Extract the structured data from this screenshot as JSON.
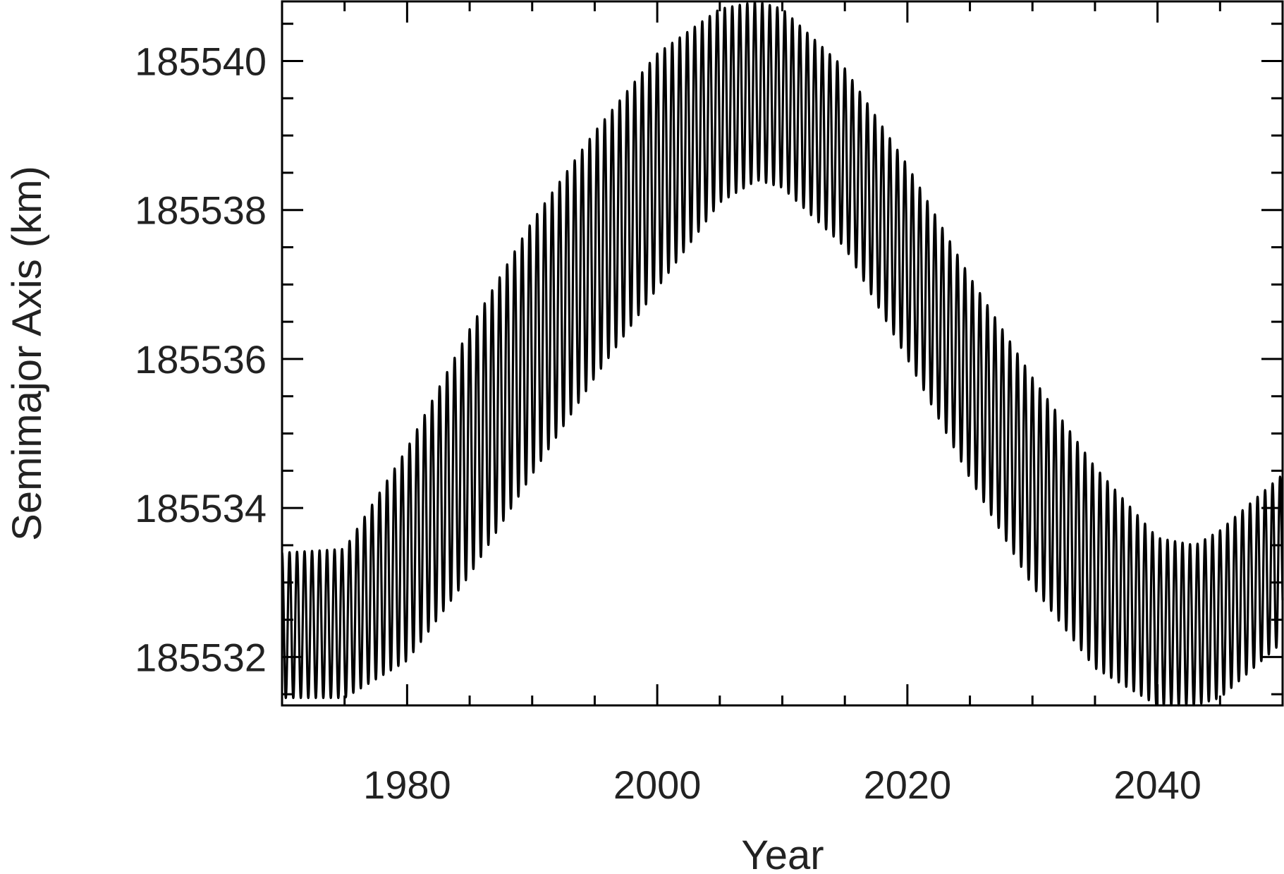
{
  "chart_data": {
    "type": "line",
    "xlabel": "Year",
    "ylabel": "Semimajor Axis (km)",
    "xlim": [
      1970,
      2050
    ],
    "ylim": [
      185531.35,
      185540.8
    ],
    "xticks": [
      1980,
      2000,
      2020,
      2040
    ],
    "xtick_labels": [
      "1980",
      "2000",
      "2020",
      "2040"
    ],
    "yticks": [
      185532,
      185534,
      185536,
      185538,
      185540
    ],
    "ytick_labels": [
      "185532",
      "185534",
      "185536",
      "185538",
      "185540"
    ],
    "x_minor_step": 5,
    "y_minor_step": 0.5,
    "grid": false,
    "line_color": "#000000",
    "series": [
      {
        "x": [
          1970,
          1975,
          1980,
          1985,
          1990,
          1995,
          2000,
          2005,
          2008,
          2010,
          2015,
          2020,
          2025,
          2030,
          2035,
          2040,
          2043,
          2045,
          2050
        ],
        "y_min": [
          185531.45,
          185531.45,
          185531.95,
          185533.1,
          185534.45,
          185535.75,
          185536.95,
          185538.1,
          185538.4,
          185538.3,
          185537.5,
          185536.0,
          185534.4,
          185532.95,
          185531.85,
          185531.35,
          185531.35,
          185531.45,
          185532.2
        ],
        "y_max": [
          185533.4,
          185533.45,
          185534.8,
          185536.4,
          185537.85,
          185539.05,
          185540.1,
          185540.7,
          185540.8,
          185540.7,
          185539.9,
          185538.6,
          185537.1,
          185535.75,
          185534.55,
          185533.6,
          185533.5,
          185533.7,
          185534.45
        ]
      }
    ],
    "oscillation_period_years": 0.6
  }
}
